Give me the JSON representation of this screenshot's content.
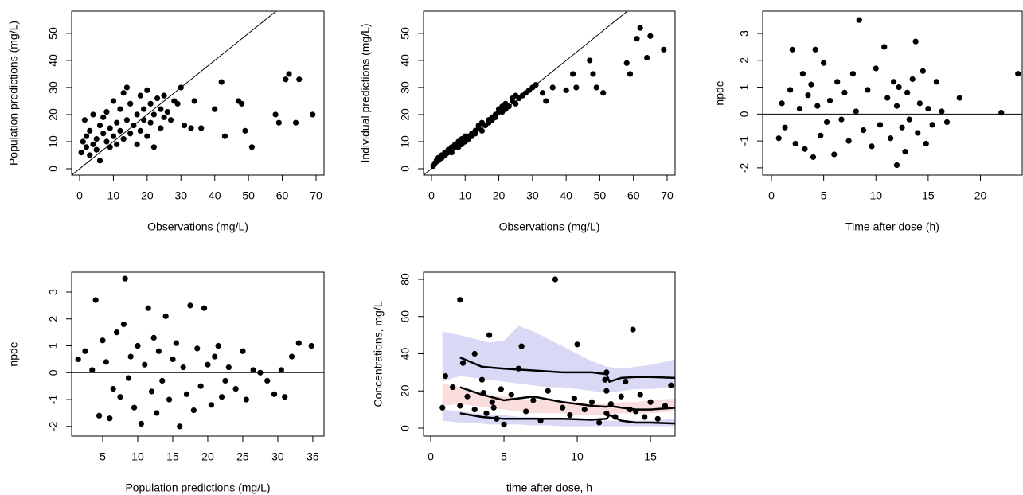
{
  "chart_data": [
    {
      "type": "scatter",
      "xlabel": "Observations (mg/L)",
      "ylabel": "Population predictions (mg/L)",
      "xlim": [
        -2.36,
        72.36
      ],
      "ylim": [
        -2.35,
        58.2
      ],
      "xticks": [
        0,
        10,
        20,
        30,
        40,
        50,
        60,
        70
      ],
      "yticks": [
        0,
        10,
        20,
        30,
        40,
        50
      ],
      "abline": {
        "intercept": 0,
        "slope": 1
      },
      "series": [
        {
          "color": "#000000",
          "x": [
            0.5,
            1,
            1.5,
            2,
            2,
            3,
            3,
            4,
            4,
            5,
            5,
            6,
            6,
            7,
            7,
            8,
            8,
            9,
            9,
            10,
            10,
            11,
            11,
            12,
            12,
            13,
            13,
            14,
            14,
            15,
            15,
            16,
            17,
            17,
            18,
            18,
            19,
            19,
            20,
            20,
            21,
            21,
            22,
            22,
            23,
            24,
            24,
            25,
            25,
            26,
            27,
            28,
            29,
            30,
            31,
            33,
            34,
            36,
            40,
            42,
            43,
            47,
            48,
            49,
            51,
            58,
            59,
            61,
            62,
            64,
            65,
            69
          ],
          "values": [
            6,
            10,
            18,
            8,
            12,
            5,
            14,
            9,
            20,
            11,
            7,
            16,
            3,
            13,
            19,
            10,
            21,
            15,
            8,
            12,
            25,
            17,
            9,
            14,
            22,
            28,
            11,
            18,
            30,
            13,
            24,
            16,
            20,
            9,
            27,
            14,
            22,
            18,
            12,
            29,
            17,
            24,
            20,
            8,
            26,
            15,
            22,
            19,
            27,
            21,
            18,
            25,
            24,
            30,
            16,
            15,
            25,
            15,
            22,
            32,
            12,
            25,
            24,
            14,
            8,
            20,
            17,
            33,
            35,
            17,
            33,
            20
          ]
        }
      ]
    },
    {
      "type": "scatter",
      "xlabel": "Observations (mg/L)",
      "ylabel": "Individual predictions (mg/L)",
      "xlim": [
        -2.36,
        72.36
      ],
      "ylim": [
        -2.35,
        58.2
      ],
      "xticks": [
        0,
        10,
        20,
        30,
        40,
        50,
        60,
        70
      ],
      "yticks": [
        0,
        10,
        20,
        30,
        40,
        50
      ],
      "abline": {
        "intercept": 0,
        "slope": 1
      },
      "series": [
        {
          "color": "#000000",
          "x": [
            0.5,
            1,
            1.5,
            2,
            2,
            3,
            3,
            4,
            4,
            5,
            5,
            6,
            6,
            7,
            7,
            8,
            8,
            9,
            9,
            10,
            10,
            11,
            11,
            12,
            12,
            13,
            13,
            14,
            14,
            15,
            15,
            16,
            17,
            17,
            18,
            18,
            19,
            19,
            20,
            20,
            21,
            21,
            22,
            22,
            23,
            24,
            24,
            25,
            25,
            26,
            27,
            28,
            29,
            30,
            31,
            33,
            34,
            36,
            40,
            42,
            43,
            47,
            48,
            49,
            51,
            58,
            59,
            61,
            62,
            64,
            65,
            69
          ],
          "values": [
            1,
            2,
            3,
            3,
            4,
            4,
            5,
            6,
            5,
            6,
            7,
            8,
            6,
            8,
            9,
            10,
            8,
            9,
            11,
            12,
            10,
            12,
            11,
            13,
            12,
            14,
            13,
            15,
            16,
            14,
            17,
            16,
            18,
            17,
            19,
            18,
            20,
            19,
            21,
            22,
            21,
            23,
            22,
            24,
            23,
            25,
            26,
            24,
            27,
            26,
            27,
            28,
            29,
            30,
            31,
            28,
            25,
            30,
            29,
            35,
            30,
            40,
            35,
            30,
            28,
            39,
            35,
            48,
            52,
            41,
            49,
            44
          ]
        }
      ]
    },
    {
      "type": "scatter",
      "xlabel": "Time after dose (h)",
      "ylabel": "npde",
      "xlim": [
        -0.84,
        24.0
      ],
      "ylim": [
        -2.27,
        3.83
      ],
      "xticks": [
        0,
        5,
        10,
        15,
        20
      ],
      "yticks": [
        -2,
        -1,
        0,
        1,
        2,
        3
      ],
      "hline": 0,
      "series": [
        {
          "color": "#000000",
          "x": [
            0.7,
            1,
            1.3,
            1.8,
            2,
            2.3,
            2.7,
            3,
            3.2,
            3.5,
            3.8,
            4,
            4.2,
            4.4,
            4.7,
            5,
            5.3,
            5.6,
            6,
            6.3,
            6.7,
            7,
            7.4,
            7.8,
            8.1,
            8.4,
            8.8,
            9.2,
            9.6,
            10,
            10.4,
            10.8,
            11.1,
            11.4,
            11.7,
            12,
            12,
            12.2,
            12.5,
            12.8,
            13,
            13.2,
            13.5,
            13.8,
            14,
            14.2,
            14.5,
            14.8,
            15,
            15.4,
            15.8,
            16.3,
            16.8,
            18,
            22,
            23.6
          ],
          "values": [
            -0.9,
            0.4,
            -0.5,
            0.9,
            2.4,
            -1.1,
            0.2,
            1.5,
            -1.3,
            0.7,
            1.1,
            -1.6,
            2.4,
            0.3,
            -0.8,
            1.9,
            -0.3,
            0.5,
            -1.5,
            1.2,
            -0.2,
            0.8,
            -1.0,
            1.5,
            0.1,
            3.5,
            -0.6,
            0.9,
            -1.2,
            1.7,
            -0.4,
            2.5,
            0.6,
            -0.9,
            1.2,
            -1.9,
            0.3,
            1.0,
            -0.5,
            -1.4,
            0.8,
            -0.2,
            1.3,
            2.7,
            -0.7,
            0.4,
            1.6,
            -1.1,
            0.2,
            -0.4,
            1.2,
            0.1,
            -0.3,
            0.6,
            0.05,
            1.5
          ]
        }
      ]
    },
    {
      "type": "scatter",
      "xlabel": "Population predictions (mg/L)",
      "ylabel": "npde",
      "xlim": [
        0.57,
        36.6
      ],
      "ylim": [
        -2.36,
        3.74
      ],
      "xticks": [
        5,
        10,
        15,
        20,
        25,
        30,
        35
      ],
      "yticks": [
        -2,
        -1,
        0,
        1,
        2,
        3
      ],
      "hline": 0,
      "series": [
        {
          "color": "#000000",
          "x": [
            1.5,
            2.5,
            3.5,
            4,
            4.5,
            5,
            5.5,
            6,
            6.5,
            7,
            7.5,
            8,
            8.2,
            8.7,
            9,
            9.5,
            10,
            10.5,
            11,
            11.5,
            12,
            12.3,
            12.7,
            13,
            13.5,
            14,
            14.5,
            15,
            15.5,
            16,
            16.5,
            17,
            17.5,
            18,
            18.5,
            19,
            19.5,
            20,
            20.5,
            21,
            21.5,
            22,
            22.5,
            23,
            24,
            25,
            25.5,
            26.5,
            27.5,
            28.5,
            29.5,
            30.5,
            31,
            32,
            33,
            34.8
          ],
          "values": [
            0.5,
            0.8,
            0.1,
            2.7,
            -1.6,
            1.2,
            0.4,
            -1.7,
            -0.6,
            1.5,
            -0.9,
            1.8,
            3.5,
            -0.2,
            0.6,
            -1.3,
            1.0,
            -1.9,
            0.3,
            2.4,
            -0.7,
            1.3,
            -1.5,
            0.8,
            -0.3,
            2.1,
            -1.0,
            0.5,
            1.1,
            -2.0,
            0.2,
            -0.8,
            2.5,
            -1.4,
            0.9,
            -0.5,
            2.4,
            0.3,
            -1.2,
            0.6,
            1.0,
            -0.9,
            -0.3,
            0.2,
            -0.6,
            0.8,
            -1.0,
            0.1,
            0.0,
            -0.3,
            -0.8,
            0.1,
            -0.9,
            0.6,
            1.1,
            1.0
          ]
        }
      ]
    },
    {
      "type": "vpc",
      "xlabel": "time after dose, h",
      "ylabel": "Concentrations, mg/L",
      "xlim": [
        -0.49,
        16.68
      ],
      "ylim": [
        -4.28,
        83.85
      ],
      "xticks": [
        0,
        5,
        10,
        15
      ],
      "yticks": [
        0,
        20,
        40,
        60,
        80
      ],
      "bands": [
        {
          "color": "rgba(170,170,235,0.45)",
          "x": [
            0.8,
            2,
            3,
            4,
            5,
            6,
            7,
            8,
            9,
            10,
            11,
            12,
            13,
            14,
            15,
            16.7
          ],
          "lower": [
            25,
            28,
            27,
            26,
            25,
            24,
            23,
            22,
            22,
            21,
            20,
            19,
            20,
            21,
            21,
            22
          ],
          "upper": [
            52,
            50,
            48,
            46,
            47,
            55,
            52,
            48,
            44,
            40,
            36,
            33,
            32,
            33,
            34,
            37
          ]
        },
        {
          "color": "rgba(245,190,190,0.5)",
          "x": [
            0.8,
            2,
            3,
            4,
            5,
            6,
            7,
            8,
            9,
            10,
            11,
            12,
            13,
            14,
            15,
            16.7
          ],
          "lower": [
            12,
            13,
            12,
            11,
            10,
            9,
            8,
            8,
            8,
            7,
            7,
            7,
            8,
            8,
            8,
            9
          ],
          "upper": [
            24,
            22,
            20,
            18,
            17,
            16,
            15,
            15,
            14,
            14,
            13,
            13,
            14,
            14,
            15,
            16
          ]
        },
        {
          "color": "rgba(170,170,235,0.45)",
          "x": [
            0.8,
            2,
            3,
            4,
            5,
            6,
            7,
            8,
            9,
            10,
            11,
            12,
            13,
            14,
            15,
            16.7
          ],
          "lower": [
            4,
            3,
            3,
            2,
            2,
            2,
            1.5,
            1.5,
            1,
            1,
            1,
            1,
            1,
            1,
            1,
            1
          ],
          "upper": [
            10,
            9,
            8,
            7,
            7,
            6,
            6,
            5,
            5,
            5,
            4,
            4,
            4,
            4,
            4,
            5
          ]
        }
      ],
      "lines": [
        {
          "x": [
            2,
            3.5,
            5,
            7,
            9,
            11,
            12,
            12.2,
            13,
            14,
            15,
            16.7
          ],
          "values": [
            38,
            33,
            32,
            31,
            30,
            30,
            29,
            25,
            27,
            27.5,
            27.5,
            27
          ]
        },
        {
          "x": [
            2,
            3.5,
            5,
            7,
            9,
            11,
            12,
            12.2,
            13,
            14,
            15,
            16.7
          ],
          "values": [
            22,
            18,
            15,
            17,
            14,
            12,
            11.5,
            12,
            11,
            10,
            10,
            11
          ]
        },
        {
          "x": [
            2,
            3.5,
            5,
            7,
            9,
            11,
            12,
            12.2,
            13,
            14,
            15,
            16.7
          ],
          "values": [
            8,
            6,
            5,
            5,
            5,
            4.5,
            5,
            7,
            4,
            3,
            3,
            2.5
          ]
        }
      ],
      "series": [
        {
          "color": "#000000",
          "x": [
            0.8,
            1,
            1.5,
            2,
            2,
            2.5,
            3,
            3,
            3.5,
            3.8,
            4,
            4.2,
            4.5,
            4.8,
            5,
            5.5,
            6,
            6.5,
            7,
            7.5,
            8,
            8.5,
            9,
            9.5,
            10,
            10.5,
            11,
            11.5,
            12,
            12,
            12,
            12.3,
            12.6,
            13,
            13.3,
            13.6,
            13.8,
            14,
            14.3,
            14.6,
            15,
            15.5,
            16,
            16.4,
            2.2,
            3.6,
            4.3,
            6.2,
            9.8,
            11.9
          ],
          "values": [
            11,
            28,
            22,
            69,
            12,
            17,
            10,
            40,
            26,
            8,
            50,
            14,
            5,
            21,
            2,
            18,
            32,
            9,
            15,
            4,
            20,
            80,
            11,
            7,
            45,
            10,
            14,
            3,
            30,
            8,
            20,
            13,
            6,
            17,
            25,
            10,
            53,
            9,
            18,
            6,
            14,
            5,
            12,
            23,
            35,
            19,
            11,
            44,
            16,
            26
          ]
        }
      ]
    }
  ]
}
